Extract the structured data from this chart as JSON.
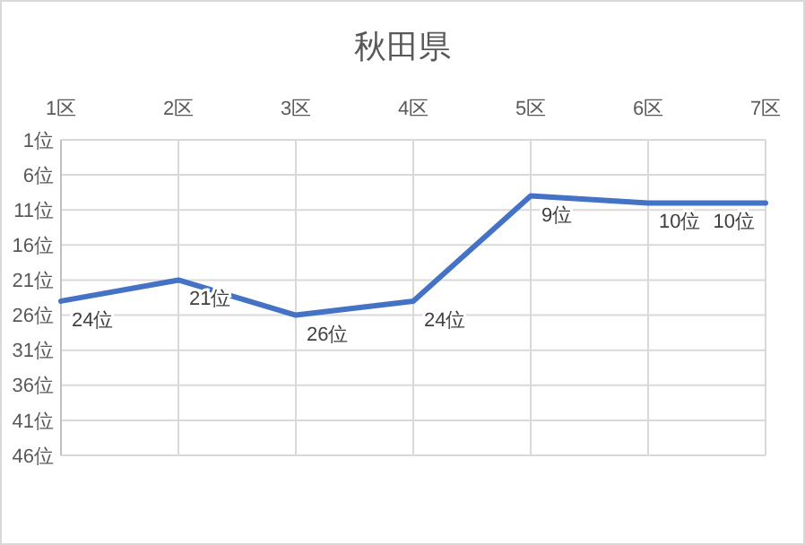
{
  "chart_data": {
    "type": "line",
    "title": "秋田県",
    "categories": [
      "1区",
      "2区",
      "3区",
      "4区",
      "5区",
      "6区",
      "7区"
    ],
    "series": [
      {
        "color": "#4472c4",
        "values": [
          24,
          21,
          26,
          24,
          9,
          10,
          10
        ]
      }
    ],
    "value_labels": [
      "24位",
      "21位",
      "26位",
      "24位",
      "9位",
      "10位",
      "10位"
    ],
    "ylim": [
      46,
      1
    ],
    "yticks": [
      {
        "value": 1,
        "label": "1位"
      },
      {
        "value": 6,
        "label": "6位"
      },
      {
        "value": 11,
        "label": "11位"
      },
      {
        "value": 16,
        "label": "16位"
      },
      {
        "value": 21,
        "label": "21位"
      },
      {
        "value": 26,
        "label": "26位"
      },
      {
        "value": 31,
        "label": "31位"
      },
      {
        "value": 36,
        "label": "36位"
      },
      {
        "value": 41,
        "label": "41位"
      },
      {
        "value": 46,
        "label": "46位"
      }
    ],
    "grid": true,
    "marker": "none",
    "line_style": "solid"
  }
}
